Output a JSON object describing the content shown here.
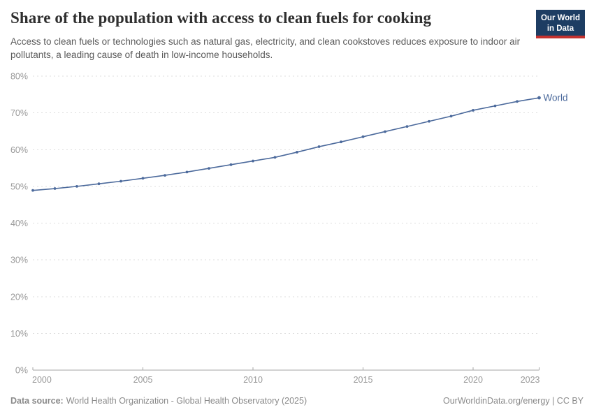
{
  "header": {
    "title": "Share of the population with access to clean fuels for cooking",
    "subtitle": "Access to clean fuels or technologies such as natural gas, electricity, and clean cookstoves reduces exposure to indoor air pollutants, a leading cause of death in low-income households.",
    "logo_line1": "Our World",
    "logo_line2": "in Data",
    "logo_colors": {
      "background": "#1d3d63",
      "underline": "#c4322f"
    }
  },
  "chart_data": {
    "type": "line",
    "title": "Share of the population with access to clean fuels for cooking",
    "x": [
      2000,
      2001,
      2002,
      2003,
      2004,
      2005,
      2006,
      2007,
      2008,
      2009,
      2010,
      2011,
      2012,
      2013,
      2014,
      2015,
      2016,
      2017,
      2018,
      2019,
      2020,
      2021,
      2022,
      2023
    ],
    "series": [
      {
        "name": "World",
        "color": "#4c6a9c",
        "values": [
          48.9,
          49.4,
          50.0,
          50.7,
          51.4,
          52.2,
          53.0,
          53.9,
          54.9,
          55.9,
          56.9,
          57.9,
          59.3,
          60.8,
          62.1,
          63.5,
          64.9,
          66.3,
          67.7,
          69.1,
          70.7,
          71.9,
          73.1,
          74.1
        ]
      }
    ],
    "xlabel": "",
    "ylabel": "",
    "ylim": [
      0,
      80
    ],
    "yticks": [
      0,
      10,
      20,
      30,
      40,
      50,
      60,
      70,
      80
    ],
    "ytick_suffix": "%",
    "xticks": [
      2000,
      2005,
      2010,
      2015,
      2020,
      2023
    ],
    "grid": "horizontal-dashed",
    "legend": "line-end-label",
    "colors": {
      "gridline": "#dedede",
      "axis": "#a5a5a5",
      "tick_label": "#999999"
    }
  },
  "footer": {
    "source_label": "Data source:",
    "source_text": "World Health Organization - Global Health Observatory (2025)",
    "right_text": "OurWorldinData.org/energy | CC BY"
  }
}
